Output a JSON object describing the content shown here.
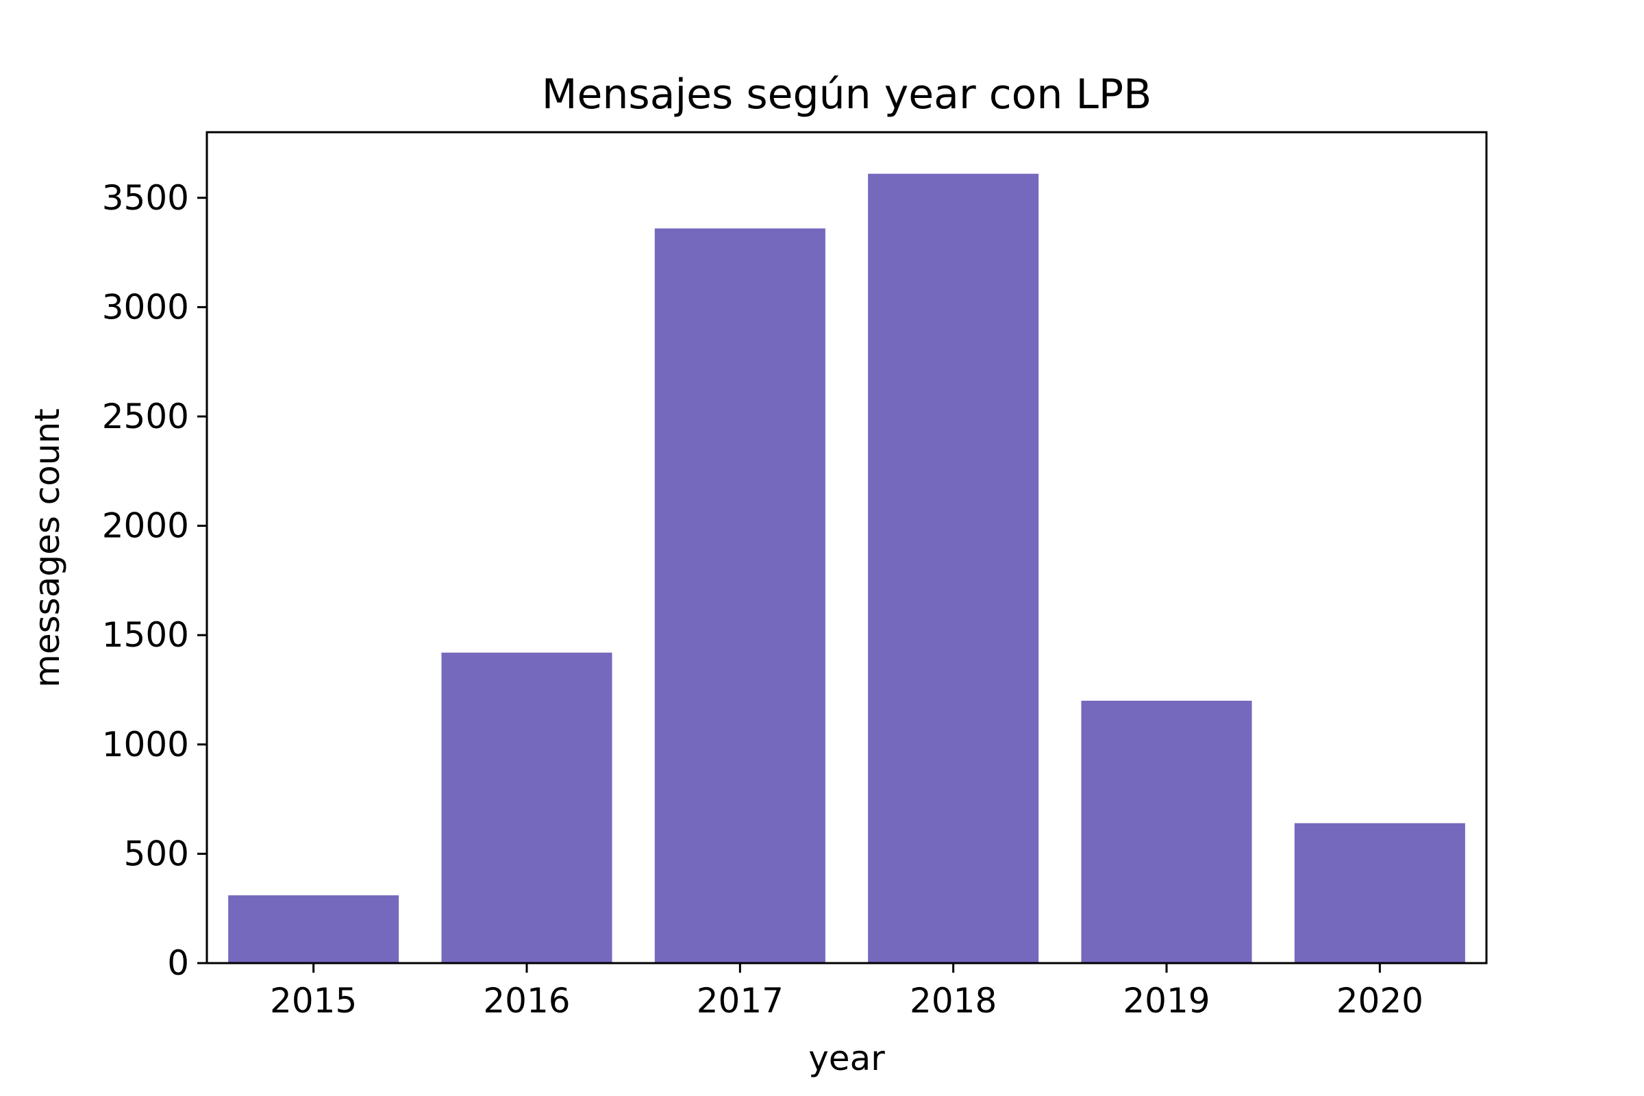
{
  "chart_data": {
    "type": "bar",
    "title": "Mensajes según year con LPB",
    "xlabel": "year",
    "ylabel": "messages count",
    "categories": [
      "2015",
      "2016",
      "2017",
      "2018",
      "2019",
      "2020"
    ],
    "values": [
      310,
      1420,
      3360,
      3610,
      1200,
      640
    ],
    "ylim": [
      0,
      3800
    ],
    "yticks": [
      0,
      500,
      1000,
      1500,
      2000,
      2500,
      3000,
      3500
    ],
    "grid": false,
    "bar_color": "#7569be"
  }
}
